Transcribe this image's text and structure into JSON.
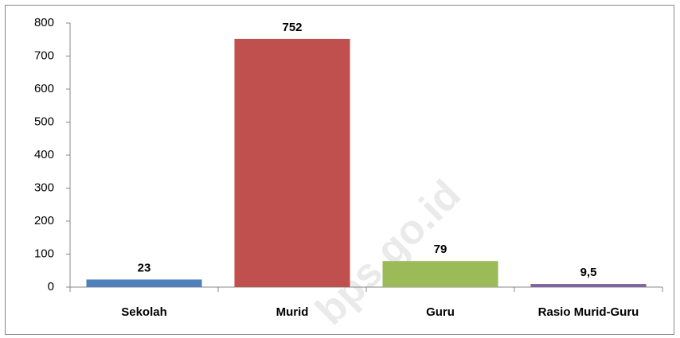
{
  "chart_data": {
    "type": "bar",
    "categories": [
      "Sekolah",
      "Murid",
      "Guru",
      "Rasio Murid-Guru"
    ],
    "values": [
      23,
      752,
      79,
      9.5
    ],
    "value_labels": [
      "23",
      "752",
      "79",
      "9,5"
    ],
    "colors": [
      "#4f81bd",
      "#c0504d",
      "#9bbb59",
      "#8064a2"
    ],
    "ylim": [
      0,
      800
    ],
    "yticks": [
      0,
      100,
      200,
      300,
      400,
      500,
      600,
      700,
      800
    ],
    "grid": false,
    "watermark": "bps.go.id"
  }
}
